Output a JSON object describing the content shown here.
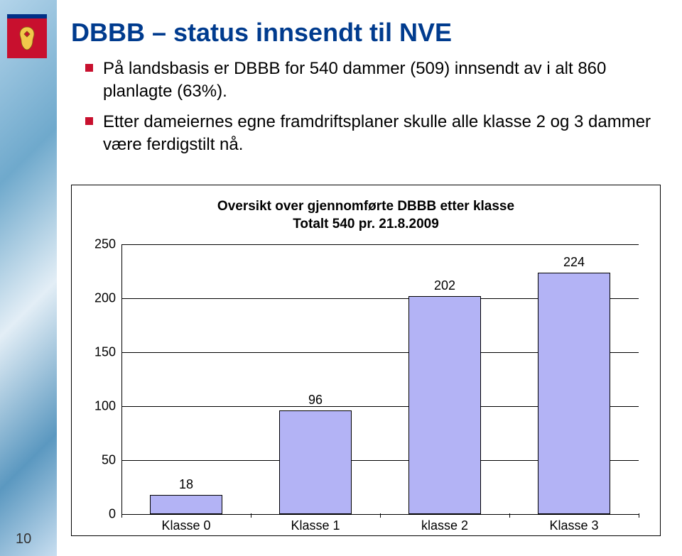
{
  "title": "DBBB – status innsendt til NVE",
  "bullets": [
    "På landsbasis er DBBB for 540 dammer (509) innsendt av i alt 860 planlagte (63%).",
    "Etter dameiernes egne framdriftsplaner skulle alle klasse 2 og 3 dammer være ferdigstilt nå."
  ],
  "page_number": "10",
  "chart": {
    "type": "bar",
    "title_line1": "Oversikt over gjennomførte DBBB etter klasse",
    "title_line2": "Totalt 540 pr. 21.8.2009",
    "categories": [
      "Klasse 0",
      "Klasse 1",
      "klasse 2",
      "Klasse 3"
    ],
    "values": [
      18,
      96,
      202,
      224
    ],
    "bar_fill": "#b3b3f5",
    "bar_border": "#000000",
    "ylim": [
      0,
      250
    ],
    "ytick_step": 50,
    "yticks": [
      0,
      50,
      100,
      150,
      200,
      250
    ],
    "grid_color": "#000000",
    "background_color": "#ffffff",
    "title_fontsize": 19,
    "label_fontsize": 18,
    "bar_width": 0.56,
    "font_family": "Arial"
  },
  "colors": {
    "title": "#003b8e",
    "bullet_square": "#c8102e",
    "logo_bg": "#c8102e",
    "logo_top": "#003087"
  }
}
